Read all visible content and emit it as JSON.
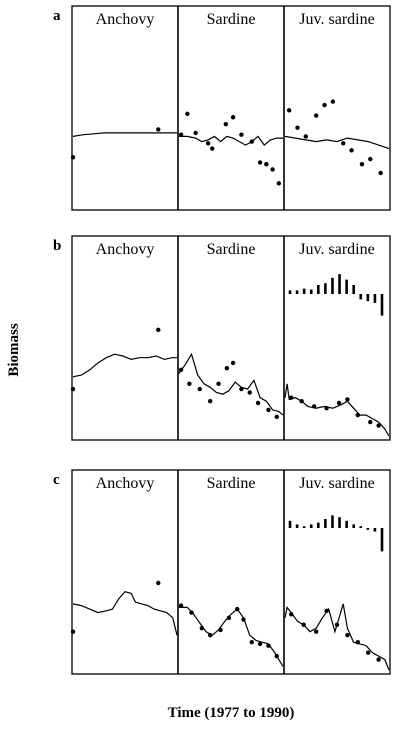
{
  "chart_data": {
    "type": "line",
    "xlabel": "Time (1977 to 1990)",
    "ylabel": "Biomass",
    "xlim": [
      0,
      1
    ],
    "ylim": [
      0,
      1
    ],
    "rows": [
      {
        "label": "a",
        "panels": [
          {
            "title": "Anchovy",
            "observed": [
              [
                0.0,
                0.28
              ],
              [
                0.82,
                0.44
              ]
            ],
            "fitted": [
              [
                0.0,
                0.4
              ],
              [
                0.1,
                0.41
              ],
              [
                0.2,
                0.415
              ],
              [
                0.3,
                0.42
              ],
              [
                0.4,
                0.42
              ],
              [
                0.5,
                0.42
              ],
              [
                0.6,
                0.42
              ],
              [
                0.7,
                0.42
              ],
              [
                0.8,
                0.42
              ],
              [
                0.9,
                0.42
              ],
              [
                1.0,
                0.42
              ]
            ],
            "bars": []
          },
          {
            "title": "Sardine",
            "observed": [
              [
                0.02,
                0.41
              ],
              [
                0.08,
                0.53
              ],
              [
                0.16,
                0.42
              ],
              [
                0.28,
                0.36
              ],
              [
                0.32,
                0.33
              ],
              [
                0.45,
                0.47
              ],
              [
                0.52,
                0.51
              ],
              [
                0.6,
                0.41
              ],
              [
                0.7,
                0.37
              ],
              [
                0.78,
                0.25
              ],
              [
                0.84,
                0.24
              ],
              [
                0.9,
                0.21
              ],
              [
                0.96,
                0.13
              ]
            ],
            "fitted": [
              [
                0.0,
                0.4
              ],
              [
                0.08,
                0.4
              ],
              [
                0.16,
                0.39
              ],
              [
                0.22,
                0.37
              ],
              [
                0.28,
                0.38
              ],
              [
                0.34,
                0.4
              ],
              [
                0.4,
                0.37
              ],
              [
                0.46,
                0.4
              ],
              [
                0.52,
                0.39
              ],
              [
                0.58,
                0.37
              ],
              [
                0.64,
                0.35
              ],
              [
                0.7,
                0.37
              ],
              [
                0.76,
                0.4
              ],
              [
                0.82,
                0.35
              ],
              [
                0.88,
                0.38
              ],
              [
                0.94,
                0.39
              ],
              [
                1.0,
                0.39
              ]
            ],
            "bars": []
          },
          {
            "title": "Juv. sardine",
            "observed": [
              [
                0.04,
                0.55
              ],
              [
                0.12,
                0.45
              ],
              [
                0.2,
                0.4
              ],
              [
                0.3,
                0.52
              ],
              [
                0.38,
                0.58
              ],
              [
                0.46,
                0.6
              ],
              [
                0.56,
                0.36
              ],
              [
                0.64,
                0.32
              ],
              [
                0.74,
                0.24
              ],
              [
                0.82,
                0.27
              ],
              [
                0.92,
                0.19
              ]
            ],
            "fitted": [
              [
                0.0,
                0.4
              ],
              [
                0.1,
                0.39
              ],
              [
                0.2,
                0.38
              ],
              [
                0.3,
                0.37
              ],
              [
                0.4,
                0.38
              ],
              [
                0.5,
                0.37
              ],
              [
                0.6,
                0.39
              ],
              [
                0.7,
                0.38
              ],
              [
                0.8,
                0.37
              ],
              [
                0.9,
                0.35
              ],
              [
                1.0,
                0.33
              ]
            ],
            "bars": []
          }
        ]
      },
      {
        "label": "b",
        "panels": [
          {
            "title": "Anchovy",
            "observed": [
              [
                0.0,
                0.27
              ],
              [
                0.82,
                0.61
              ]
            ],
            "fitted": [
              [
                0.0,
                0.34
              ],
              [
                0.08,
                0.35
              ],
              [
                0.16,
                0.38
              ],
              [
                0.24,
                0.42
              ],
              [
                0.32,
                0.45
              ],
              [
                0.4,
                0.47
              ],
              [
                0.48,
                0.46
              ],
              [
                0.56,
                0.44
              ],
              [
                0.64,
                0.45
              ],
              [
                0.72,
                0.45
              ],
              [
                0.8,
                0.46
              ],
              [
                0.88,
                0.44
              ],
              [
                0.95,
                0.45
              ],
              [
                1.0,
                0.45
              ]
            ],
            "bars": []
          },
          {
            "title": "Sardine",
            "observed": [
              [
                0.02,
                0.38
              ],
              [
                0.1,
                0.3
              ],
              [
                0.2,
                0.27
              ],
              [
                0.3,
                0.2
              ],
              [
                0.38,
                0.3
              ],
              [
                0.46,
                0.39
              ],
              [
                0.52,
                0.42
              ],
              [
                0.6,
                0.27
              ],
              [
                0.68,
                0.25
              ],
              [
                0.76,
                0.19
              ],
              [
                0.86,
                0.15
              ],
              [
                0.94,
                0.11
              ]
            ],
            "fitted": [
              [
                0.0,
                0.36
              ],
              [
                0.06,
                0.41
              ],
              [
                0.12,
                0.47
              ],
              [
                0.18,
                0.35
              ],
              [
                0.24,
                0.3
              ],
              [
                0.3,
                0.28
              ],
              [
                0.36,
                0.25
              ],
              [
                0.42,
                0.24
              ],
              [
                0.48,
                0.26
              ],
              [
                0.54,
                0.31
              ],
              [
                0.6,
                0.28
              ],
              [
                0.66,
                0.27
              ],
              [
                0.72,
                0.32
              ],
              [
                0.78,
                0.22
              ],
              [
                0.84,
                0.2
              ],
              [
                0.9,
                0.15
              ],
              [
                0.96,
                0.14
              ],
              [
                1.0,
                0.12
              ]
            ],
            "bars": []
          },
          {
            "title": "Juv. sardine",
            "observed": [
              [
                0.06,
                0.22
              ],
              [
                0.16,
                0.2
              ],
              [
                0.28,
                0.17
              ],
              [
                0.4,
                0.16
              ],
              [
                0.52,
                0.19
              ],
              [
                0.6,
                0.21
              ],
              [
                0.7,
                0.12
              ],
              [
                0.82,
                0.08
              ],
              [
                0.9,
                0.06
              ]
            ],
            "fitted": [
              [
                0.0,
                0.22
              ],
              [
                0.02,
                0.3
              ],
              [
                0.04,
                0.21
              ],
              [
                0.1,
                0.22
              ],
              [
                0.16,
                0.2
              ],
              [
                0.22,
                0.17
              ],
              [
                0.3,
                0.16
              ],
              [
                0.38,
                0.17
              ],
              [
                0.46,
                0.16
              ],
              [
                0.54,
                0.18
              ],
              [
                0.6,
                0.2
              ],
              [
                0.66,
                0.16
              ],
              [
                0.72,
                0.12
              ],
              [
                0.78,
                0.12
              ],
              [
                0.84,
                0.1
              ],
              [
                0.9,
                0.08
              ],
              [
                0.96,
                0.04
              ],
              [
                1.0,
                0.0
              ]
            ],
            "bars": [
              0.02,
              0.02,
              0.03,
              0.025,
              0.05,
              0.06,
              0.09,
              0.11,
              0.08,
              0.05,
              -0.03,
              -0.04,
              -0.05,
              -0.12
            ]
          }
        ]
      },
      {
        "label": "c",
        "panels": [
          {
            "title": "Anchovy",
            "observed": [
              [
                0.0,
                0.22
              ],
              [
                0.82,
                0.5
              ]
            ],
            "fitted": [
              [
                0.0,
                0.38
              ],
              [
                0.08,
                0.37
              ],
              [
                0.16,
                0.35
              ],
              [
                0.24,
                0.33
              ],
              [
                0.32,
                0.34
              ],
              [
                0.38,
                0.35
              ],
              [
                0.44,
                0.41
              ],
              [
                0.5,
                0.45
              ],
              [
                0.56,
                0.44
              ],
              [
                0.6,
                0.39
              ],
              [
                0.66,
                0.38
              ],
              [
                0.72,
                0.37
              ],
              [
                0.78,
                0.35
              ],
              [
                0.84,
                0.34
              ],
              [
                0.9,
                0.33
              ],
              [
                0.96,
                0.3
              ],
              [
                1.0,
                0.2
              ]
            ],
            "bars": []
          },
          {
            "title": "Sardine",
            "observed": [
              [
                0.02,
                0.37
              ],
              [
                0.12,
                0.33
              ],
              [
                0.22,
                0.24
              ],
              [
                0.3,
                0.2
              ],
              [
                0.4,
                0.23
              ],
              [
                0.48,
                0.3
              ],
              [
                0.56,
                0.35
              ],
              [
                0.62,
                0.29
              ],
              [
                0.7,
                0.16
              ],
              [
                0.78,
                0.15
              ],
              [
                0.86,
                0.14
              ],
              [
                0.94,
                0.08
              ]
            ],
            "fitted": [
              [
                0.0,
                0.36
              ],
              [
                0.08,
                0.36
              ],
              [
                0.14,
                0.32
              ],
              [
                0.2,
                0.27
              ],
              [
                0.26,
                0.22
              ],
              [
                0.32,
                0.2
              ],
              [
                0.38,
                0.23
              ],
              [
                0.44,
                0.28
              ],
              [
                0.5,
                0.32
              ],
              [
                0.56,
                0.35
              ],
              [
                0.62,
                0.3
              ],
              [
                0.68,
                0.2
              ],
              [
                0.74,
                0.17
              ],
              [
                0.8,
                0.16
              ],
              [
                0.86,
                0.15
              ],
              [
                0.92,
                0.1
              ],
              [
                1.0,
                0.02
              ]
            ],
            "bars": []
          },
          {
            "title": "Juv. sardine",
            "observed": [
              [
                0.06,
                0.32
              ],
              [
                0.18,
                0.26
              ],
              [
                0.3,
                0.22
              ],
              [
                0.4,
                0.34
              ],
              [
                0.5,
                0.26
              ],
              [
                0.6,
                0.2
              ],
              [
                0.7,
                0.16
              ],
              [
                0.8,
                0.1
              ],
              [
                0.9,
                0.06
              ]
            ],
            "fitted": [
              [
                0.0,
                0.3
              ],
              [
                0.02,
                0.36
              ],
              [
                0.06,
                0.33
              ],
              [
                0.12,
                0.28
              ],
              [
                0.18,
                0.26
              ],
              [
                0.24,
                0.22
              ],
              [
                0.3,
                0.24
              ],
              [
                0.36,
                0.3
              ],
              [
                0.42,
                0.35
              ],
              [
                0.48,
                0.22
              ],
              [
                0.52,
                0.3
              ],
              [
                0.56,
                0.38
              ],
              [
                0.6,
                0.24
              ],
              [
                0.66,
                0.16
              ],
              [
                0.72,
                0.15
              ],
              [
                0.78,
                0.14
              ],
              [
                0.84,
                0.1
              ],
              [
                0.9,
                0.08
              ],
              [
                0.96,
                0.06
              ],
              [
                1.0,
                0.0
              ]
            ],
            "bars": [
              0.04,
              0.02,
              0.01,
              0.02,
              0.03,
              0.05,
              0.07,
              0.06,
              0.04,
              0.02,
              0.01,
              -0.01,
              -0.02,
              -0.13
            ]
          }
        ]
      }
    ]
  }
}
